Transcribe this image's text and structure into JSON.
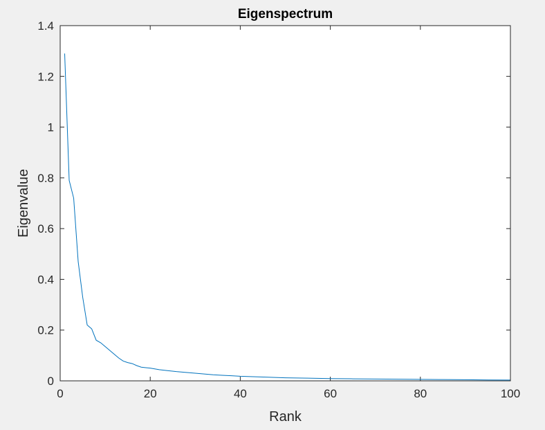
{
  "chart_data": {
    "type": "line",
    "title": "Eigenspectrum",
    "xlabel": "Rank",
    "ylabel": "Eigenvalue",
    "xlim": [
      0,
      100
    ],
    "ylim": [
      0,
      1.4
    ],
    "xticks": [
      0,
      20,
      40,
      60,
      80,
      100
    ],
    "yticks": [
      0,
      0.2,
      0.4,
      0.6,
      0.8,
      1,
      1.2,
      1.4
    ],
    "grid": false,
    "series": [
      {
        "color": "#0072bd",
        "x": [
          1,
          2,
          3,
          4,
          5,
          6,
          7,
          8,
          9,
          10,
          11,
          12,
          13,
          14,
          15,
          16,
          17,
          18,
          19,
          20,
          22,
          24,
          26,
          28,
          30,
          32,
          34,
          36,
          38,
          40,
          45,
          50,
          55,
          60,
          65,
          70,
          75,
          80,
          85,
          90,
          95,
          100
        ],
        "y": [
          1.29,
          0.79,
          0.72,
          0.47,
          0.33,
          0.22,
          0.205,
          0.16,
          0.15,
          0.135,
          0.12,
          0.105,
          0.09,
          0.078,
          0.072,
          0.068,
          0.06,
          0.054,
          0.052,
          0.05,
          0.044,
          0.04,
          0.036,
          0.033,
          0.03,
          0.027,
          0.024,
          0.022,
          0.02,
          0.018,
          0.015,
          0.012,
          0.0105,
          0.009,
          0.008,
          0.0072,
          0.0065,
          0.0058,
          0.005,
          0.0043,
          0.0035,
          0.003
        ]
      }
    ]
  }
}
